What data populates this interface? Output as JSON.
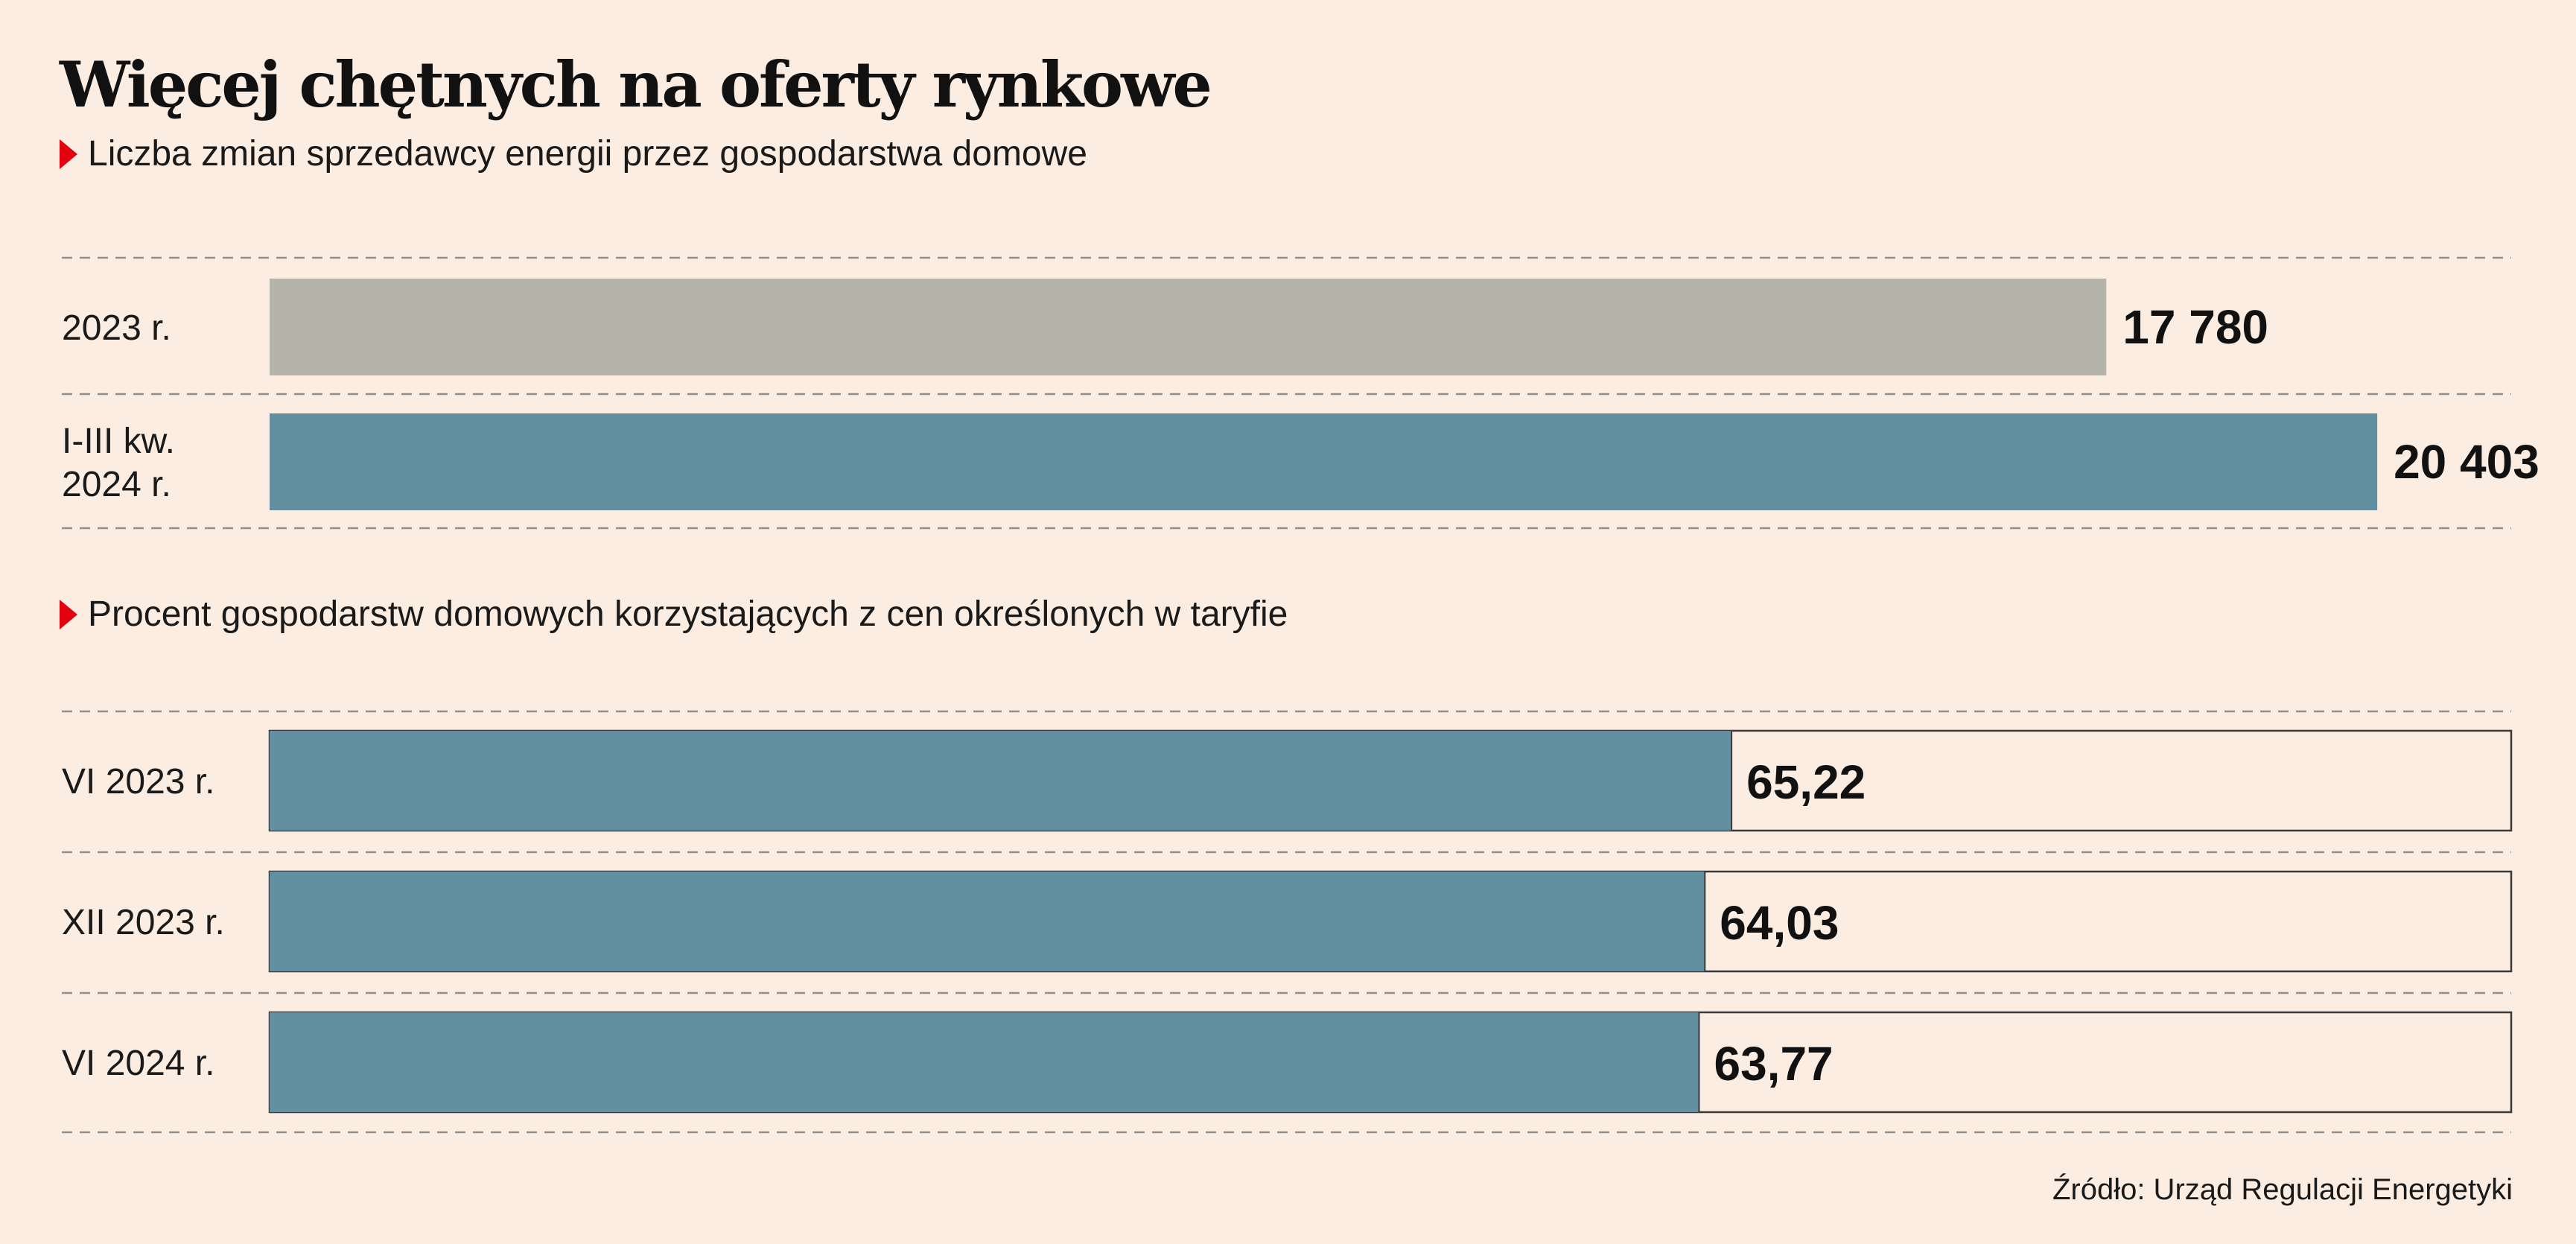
{
  "title": "Więcej chętnych na oferty rynkowe",
  "source": "Źródło: Urząd Regulacji Energetyki",
  "chart_data": [
    {
      "type": "bar",
      "orientation": "horizontal",
      "subtitle": "Liczba zmian sprzedawcy energii przez gospodarstwa domowe",
      "categories": [
        [
          "2023 r."
        ],
        [
          "I-III kw.",
          "2024 r."
        ]
      ],
      "values": [
        17780,
        20403
      ],
      "value_labels": [
        "17 780",
        "20 403"
      ],
      "bar_colors": [
        "#b4b4aa",
        "#6290a0"
      ],
      "xlim": [
        0,
        21700
      ],
      "grid": false
    },
    {
      "type": "bar",
      "orientation": "horizontal",
      "subtitle": "Procent gospodarstw domowych korzystających z cen określonych w taryfie",
      "categories": [
        [
          "VI 2023 r."
        ],
        [
          "XII 2023 r."
        ],
        [
          "VI 2024 r."
        ]
      ],
      "values": [
        65.22,
        64.03,
        63.77
      ],
      "value_labels": [
        "65,22",
        "64,03",
        "63,77"
      ],
      "bar_color": "#6290a0",
      "xlim": [
        0,
        100
      ],
      "grid": false
    }
  ]
}
